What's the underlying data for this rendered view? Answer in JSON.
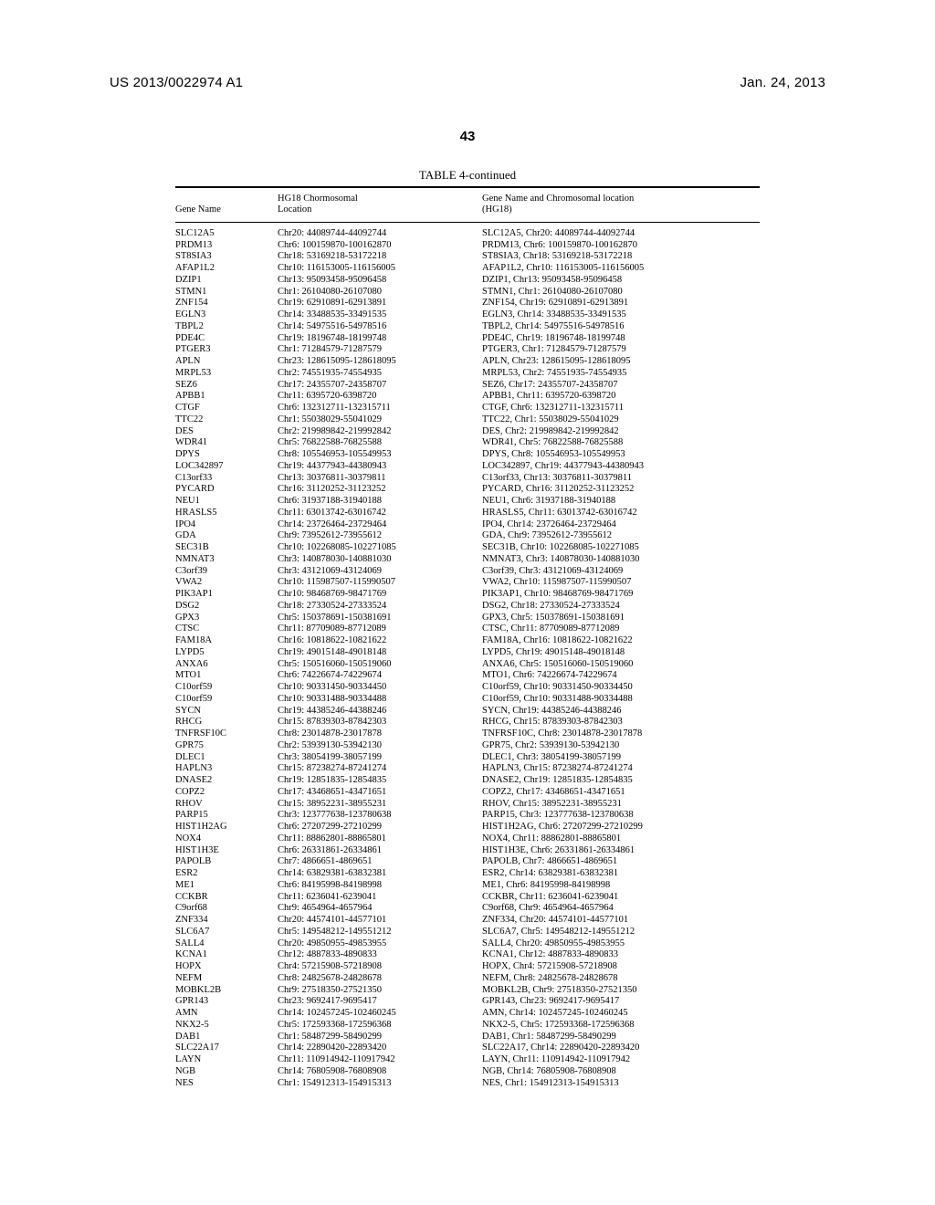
{
  "header": {
    "left": "US 2013/0022974 A1",
    "right": "Jan. 24, 2013"
  },
  "page_number": "43",
  "table": {
    "title": "TABLE 4-continued",
    "columns": [
      "Gene Name",
      "HG18 Chormosomal\nLocation",
      "Gene Name and Chromosomal location\n(HG18)"
    ],
    "rows": [
      [
        "SLC12A5",
        "Chr20: 44089744-44092744",
        "SLC12A5, Chr20: 44089744-44092744"
      ],
      [
        "PRDM13",
        "Chr6: 100159870-100162870",
        "PRDM13, Chr6: 100159870-100162870"
      ],
      [
        "ST8SIA3",
        "Chr18: 53169218-53172218",
        "ST8SIA3, Chr18: 53169218-53172218"
      ],
      [
        "AFAP1L2",
        "Chr10: 116153005-116156005",
        "AFAP1L2, Chr10: 116153005-116156005"
      ],
      [
        "DZIP1",
        "Chr13: 95093458-95096458",
        "DZIP1, Chr13: 95093458-95096458"
      ],
      [
        "STMN1",
        "Chr1: 26104080-26107080",
        "STMN1, Chr1: 26104080-26107080"
      ],
      [
        "ZNF154",
        "Chr19: 62910891-62913891",
        "ZNF154, Chr19: 62910891-62913891"
      ],
      [
        "EGLN3",
        "Chr14: 33488535-33491535",
        "EGLN3, Chr14: 33488535-33491535"
      ],
      [
        "TBPL2",
        "Chr14: 54975516-54978516",
        "TBPL2, Chr14: 54975516-54978516"
      ],
      [
        "PDE4C",
        "Chr19: 18196748-18199748",
        "PDE4C, Chr19: 18196748-18199748"
      ],
      [
        "PTGER3",
        "Chr1: 71284579-71287579",
        "PTGER3, Chr1: 71284579-71287579"
      ],
      [
        "APLN",
        "Chr23: 128615095-128618095",
        "APLN, Chr23: 128615095-128618095"
      ],
      [
        "MRPL53",
        "Chr2: 74551935-74554935",
        "MRPL53, Chr2: 74551935-74554935"
      ],
      [
        "SEZ6",
        "Chr17: 24355707-24358707",
        "SEZ6, Chr17: 24355707-24358707"
      ],
      [
        "APBB1",
        "Chr11: 6395720-6398720",
        "APBB1, Chr11: 6395720-6398720"
      ],
      [
        "CTGF",
        "Chr6: 132312711-132315711",
        "CTGF, Chr6: 132312711-132315711"
      ],
      [
        "TTC22",
        "Chr1: 55038029-55041029",
        "TTC22, Chr1: 55038029-55041029"
      ],
      [
        "DES",
        "Chr2: 219989842-219992842",
        "DES, Chr2: 219989842-219992842"
      ],
      [
        "WDR41",
        "Chr5: 76822588-76825588",
        "WDR41, Chr5: 76822588-76825588"
      ],
      [
        "DPYS",
        "Chr8: 105546953-105549953",
        "DPYS, Chr8: 105546953-105549953"
      ],
      [
        "LOC342897",
        "Chr19: 44377943-44380943",
        "LOC342897, Chr19: 44377943-44380943"
      ],
      [
        "C13orf33",
        "Chr13: 30376811-30379811",
        "C13orf33, Chr13: 30376811-30379811"
      ],
      [
        "PYCARD",
        "Chr16: 31120252-31123252",
        "PYCARD, Chr16: 31120252-31123252"
      ],
      [
        "NEU1",
        "Chr6: 31937188-31940188",
        "NEU1, Chr6: 31937188-31940188"
      ],
      [
        "HRASLS5",
        "Chr11: 63013742-63016742",
        "HRASLS5, Chr11: 63013742-63016742"
      ],
      [
        "IPO4",
        "Chr14: 23726464-23729464",
        "IPO4, Chr14: 23726464-23729464"
      ],
      [
        "GDA",
        "Chr9: 73952612-73955612",
        "GDA, Chr9: 73952612-73955612"
      ],
      [
        "SEC31B",
        "Chr10: 102268085-102271085",
        "SEC31B, Chr10: 102268085-102271085"
      ],
      [
        "NMNAT3",
        "Chr3: 140878030-140881030",
        "NMNAT3, Chr3: 140878030-140881030"
      ],
      [
        "C3orf39",
        "Chr3: 43121069-43124069",
        "C3orf39, Chr3: 43121069-43124069"
      ],
      [
        "VWA2",
        "Chr10: 115987507-115990507",
        "VWA2, Chr10: 115987507-115990507"
      ],
      [
        "PIK3AP1",
        "Chr10: 98468769-98471769",
        "PIK3AP1, Chr10: 98468769-98471769"
      ],
      [
        "DSG2",
        "Chr18: 27330524-27333524",
        "DSG2, Chr18: 27330524-27333524"
      ],
      [
        "GPX3",
        "Chr5: 150378691-150381691",
        "GPX3, Chr5: 150378691-150381691"
      ],
      [
        "CTSC",
        "Chr11: 87709089-87712089",
        "CTSC, Chr11: 87709089-87712089"
      ],
      [
        "FAM18A",
        "Chr16: 10818622-10821622",
        "FAM18A, Chr16: 10818622-10821622"
      ],
      [
        "LYPD5",
        "Chr19: 49015148-49018148",
        "LYPD5, Chr19: 49015148-49018148"
      ],
      [
        "ANXA6",
        "Chr5: 150516060-150519060",
        "ANXA6, Chr5: 150516060-150519060"
      ],
      [
        "MTO1",
        "Chr6: 74226674-74229674",
        "MTO1, Chr6: 74226674-74229674"
      ],
      [
        "C10orf59",
        "Chr10: 90331450-90334450",
        "C10orf59, Chr10: 90331450-90334450"
      ],
      [
        "C10orf59",
        "Chr10: 90331488-90334488",
        "C10orf59, Chr10: 90331488-90334488"
      ],
      [
        "SYCN",
        "Chr19: 44385246-44388246",
        "SYCN, Chr19: 44385246-44388246"
      ],
      [
        "RHCG",
        "Chr15: 87839303-87842303",
        "RHCG, Chr15: 87839303-87842303"
      ],
      [
        "TNFRSF10C",
        "Chr8: 23014878-23017878",
        "TNFRSF10C, Chr8: 23014878-23017878"
      ],
      [
        "GPR75",
        "Chr2: 53939130-53942130",
        "GPR75, Chr2: 53939130-53942130"
      ],
      [
        "DLEC1",
        "Chr3: 38054199-38057199",
        "DLEC1, Chr3: 38054199-38057199"
      ],
      [
        "HAPLN3",
        "Chr15: 87238274-87241274",
        "HAPLN3, Chr15: 87238274-87241274"
      ],
      [
        "DNASE2",
        "Chr19: 12851835-12854835",
        "DNASE2, Chr19: 12851835-12854835"
      ],
      [
        "COPZ2",
        "Chr17: 43468651-43471651",
        "COPZ2, Chr17: 43468651-43471651"
      ],
      [
        "RHOV",
        "Chr15: 38952231-38955231",
        "RHOV, Chr15: 38952231-38955231"
      ],
      [
        "PARP15",
        "Chr3: 123777638-123780638",
        "PARP15, Chr3: 123777638-123780638"
      ],
      [
        "HIST1H2AG",
        "Chr6: 27207299-27210299",
        "HIST1H2AG, Chr6: 27207299-27210299"
      ],
      [
        "NOX4",
        "Chr11: 88862801-88865801",
        "NOX4, Chr11: 88862801-88865801"
      ],
      [
        "HIST1H3E",
        "Chr6: 26331861-26334861",
        "HIST1H3E, Chr6: 26331861-26334861"
      ],
      [
        "PAPOLB",
        "Chr7: 4866651-4869651",
        "PAPOLB, Chr7: 4866651-4869651"
      ],
      [
        "ESR2",
        "Chr14: 63829381-63832381",
        "ESR2, Chr14: 63829381-63832381"
      ],
      [
        "ME1",
        "Chr6: 84195998-84198998",
        "ME1, Chr6: 84195998-84198998"
      ],
      [
        "CCKBR",
        "Chr11: 6236041-6239041",
        "CCKBR, Chr11: 6236041-6239041"
      ],
      [
        "C9orf68",
        "Chr9: 4654964-4657964",
        "C9orf68, Chr9: 4654964-4657964"
      ],
      [
        "ZNF334",
        "Chr20: 44574101-44577101",
        "ZNF334, Chr20: 44574101-44577101"
      ],
      [
        "SLC6A7",
        "Chr5: 149548212-149551212",
        "SLC6A7, Chr5: 149548212-149551212"
      ],
      [
        "SALL4",
        "Chr20: 49850955-49853955",
        "SALL4, Chr20: 49850955-49853955"
      ],
      [
        "KCNA1",
        "Chr12: 4887833-4890833",
        "KCNA1, Chr12: 4887833-4890833"
      ],
      [
        "HOPX",
        "Chr4: 57215908-57218908",
        "HOPX, Chr4: 57215908-57218908"
      ],
      [
        "NEFM",
        "Chr8: 24825678-24828678",
        "NEFM, Chr8: 24825678-24828678"
      ],
      [
        "MOBKL2B",
        "Chr9: 27518350-27521350",
        "MOBKL2B, Chr9: 27518350-27521350"
      ],
      [
        "GPR143",
        "Chr23: 9692417-9695417",
        "GPR143, Chr23: 9692417-9695417"
      ],
      [
        "AMN",
        "Chr14: 102457245-102460245",
        "AMN, Chr14: 102457245-102460245"
      ],
      [
        "NKX2-5",
        "Chr5: 172593368-172596368",
        "NKX2-5, Chr5: 172593368-172596368"
      ],
      [
        "DAB1",
        "Chr1: 58487299-58490299",
        "DAB1, Chr1: 58487299-58490299"
      ],
      [
        "SLC22A17",
        "Chr14: 22890420-22893420",
        "SLC22A17, Chr14: 22890420-22893420"
      ],
      [
        "LAYN",
        "Chr11: 110914942-110917942",
        "LAYN, Chr11: 110914942-110917942"
      ],
      [
        "NGB",
        "Chr14: 76805908-76808908",
        "NGB, Chr14: 76805908-76808908"
      ],
      [
        "NES",
        "Chr1: 154912313-154915313",
        "NES, Chr1: 154912313-154915313"
      ]
    ]
  }
}
